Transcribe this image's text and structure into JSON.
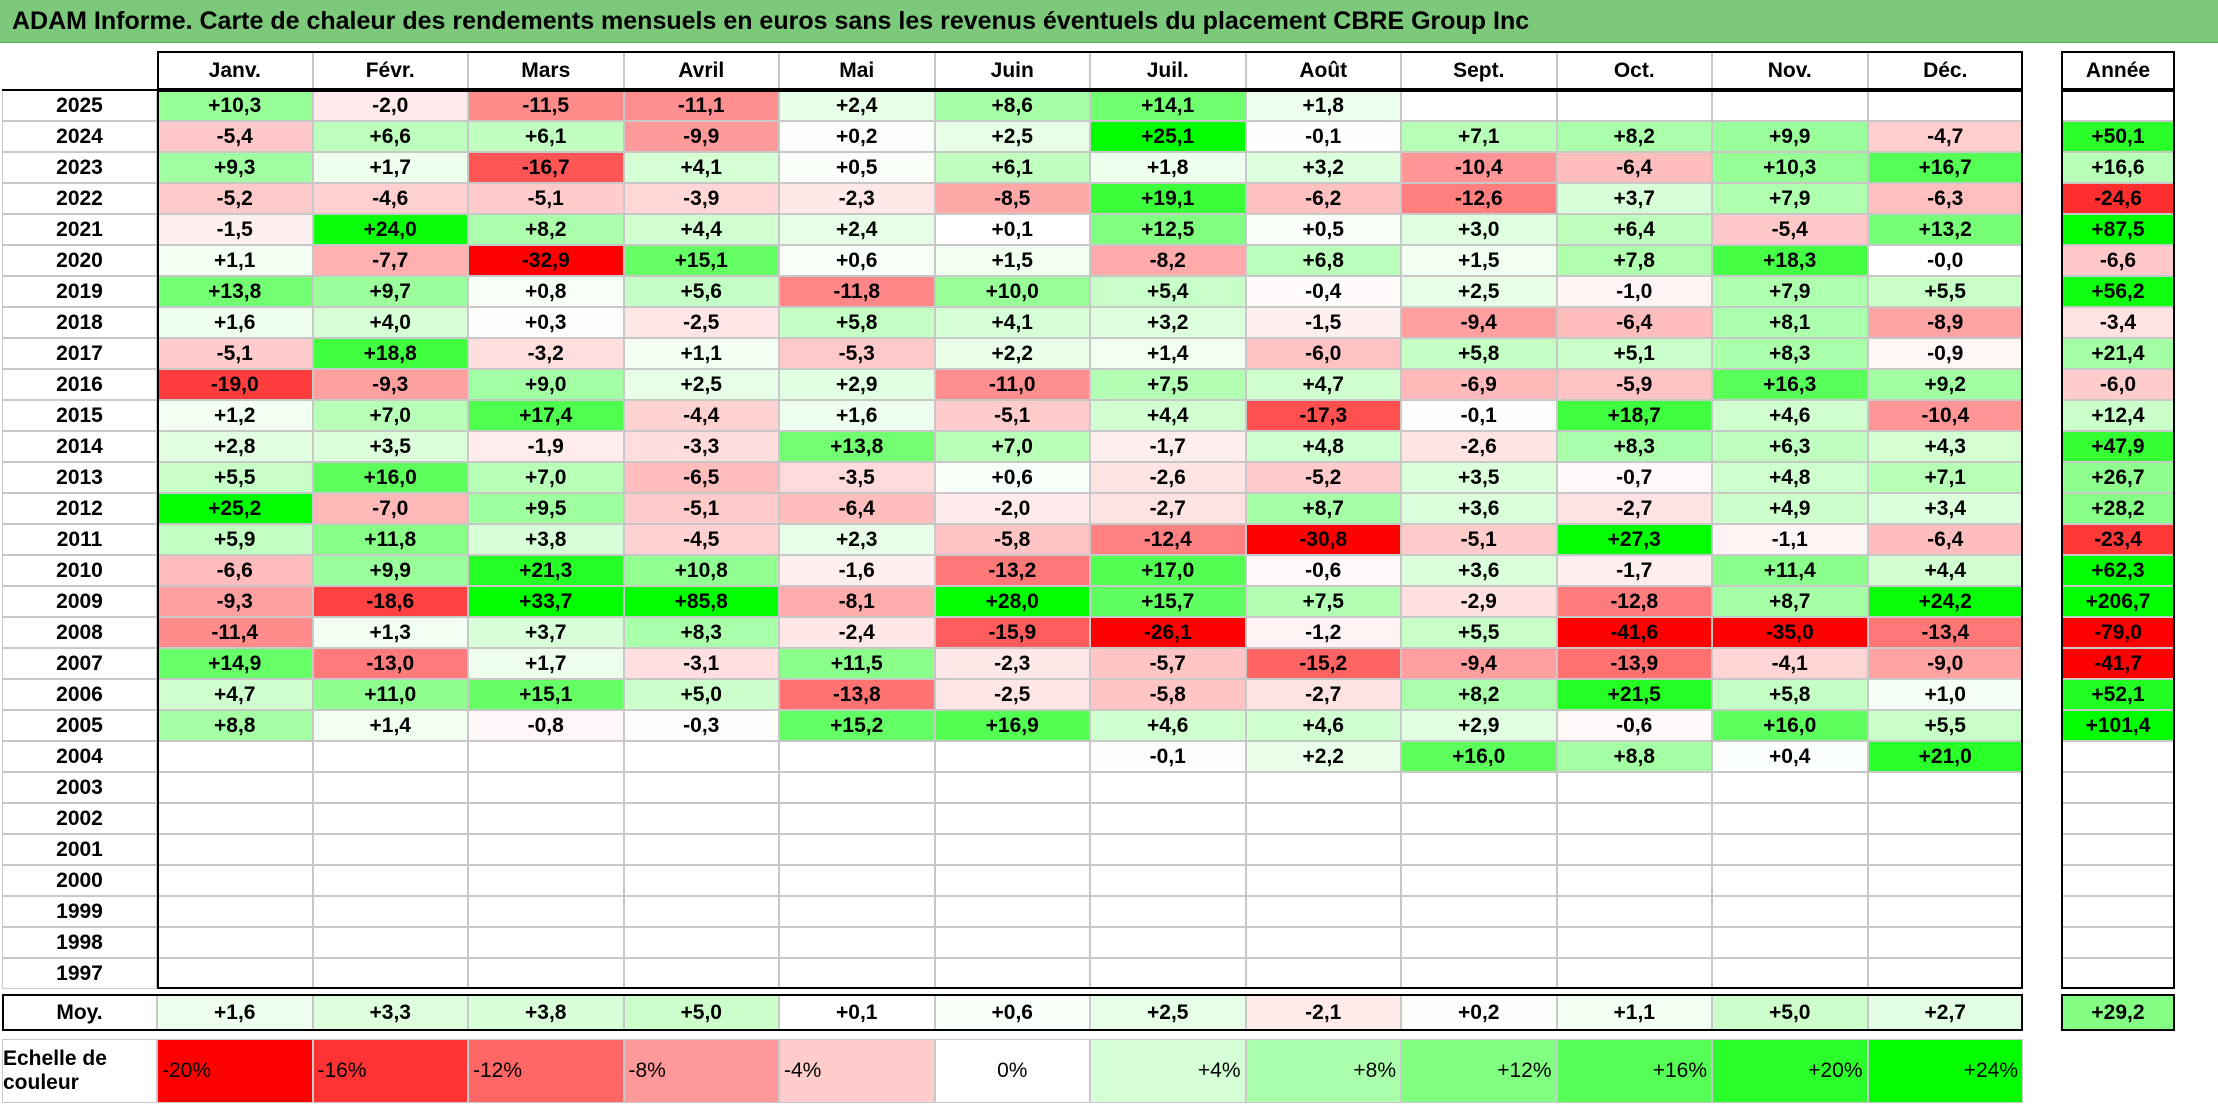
{
  "title": "ADAM Informe. Carte de chaleur des rendements mensuels en euros sans les revenus éventuels du placement CBRE Group Inc",
  "chart_data": {
    "type": "heatmap",
    "title": "ADAM Informe. Carte de chaleur des rendements mensuels en euros sans les revenus éventuels du placement CBRE Group Inc",
    "months": [
      "Janv.",
      "Févr.",
      "Mars",
      "Avril",
      "Mai",
      "Juin",
      "Juil.",
      "Août",
      "Sept.",
      "Oct.",
      "Nov.",
      "Déc."
    ],
    "year_label": "Année",
    "avg_label": "Moy.",
    "rows": [
      {
        "year": "2025",
        "values": [
          "+10,3",
          "-2,0",
          "-11,5",
          "-11,1",
          "+2,4",
          "+8,6",
          "+14,1",
          "+1,8",
          "",
          "",
          "",
          ""
        ],
        "annual": ""
      },
      {
        "year": "2024",
        "values": [
          "-5,4",
          "+6,6",
          "+6,1",
          "-9,9",
          "+0,2",
          "+2,5",
          "+25,1",
          "-0,1",
          "+7,1",
          "+8,2",
          "+9,9",
          "-4,7"
        ],
        "annual": "+50,1"
      },
      {
        "year": "2023",
        "values": [
          "+9,3",
          "+1,7",
          "-16,7",
          "+4,1",
          "+0,5",
          "+6,1",
          "+1,8",
          "+3,2",
          "-10,4",
          "-6,4",
          "+10,3",
          "+16,7"
        ],
        "annual": "+16,6"
      },
      {
        "year": "2022",
        "values": [
          "-5,2",
          "-4,6",
          "-5,1",
          "-3,9",
          "-2,3",
          "-8,5",
          "+19,1",
          "-6,2",
          "-12,6",
          "+3,7",
          "+7,9",
          "-6,3"
        ],
        "annual": "-24,6"
      },
      {
        "year": "2021",
        "values": [
          "-1,5",
          "+24,0",
          "+8,2",
          "+4,4",
          "+2,4",
          "+0,1",
          "+12,5",
          "+0,5",
          "+3,0",
          "+6,4",
          "-5,4",
          "+13,2"
        ],
        "annual": "+87,5"
      },
      {
        "year": "2020",
        "values": [
          "+1,1",
          "-7,7",
          "-32,9",
          "+15,1",
          "+0,6",
          "+1,5",
          "-8,2",
          "+6,8",
          "+1,5",
          "+7,8",
          "+18,3",
          "-0,0"
        ],
        "annual": "-6,6"
      },
      {
        "year": "2019",
        "values": [
          "+13,8",
          "+9,7",
          "+0,8",
          "+5,6",
          "-11,8",
          "+10,0",
          "+5,4",
          "-0,4",
          "+2,5",
          "-1,0",
          "+7,9",
          "+5,5"
        ],
        "annual": "+56,2"
      },
      {
        "year": "2018",
        "values": [
          "+1,6",
          "+4,0",
          "+0,3",
          "-2,5",
          "+5,8",
          "+4,1",
          "+3,2",
          "-1,5",
          "-9,4",
          "-6,4",
          "+8,1",
          "-8,9"
        ],
        "annual": "-3,4"
      },
      {
        "year": "2017",
        "values": [
          "-5,1",
          "+18,8",
          "-3,2",
          "+1,1",
          "-5,3",
          "+2,2",
          "+1,4",
          "-6,0",
          "+5,8",
          "+5,1",
          "+8,3",
          "-0,9"
        ],
        "annual": "+21,4"
      },
      {
        "year": "2016",
        "values": [
          "-19,0",
          "-9,3",
          "+9,0",
          "+2,5",
          "+2,9",
          "-11,0",
          "+7,5",
          "+4,7",
          "-6,9",
          "-5,9",
          "+16,3",
          "+9,2"
        ],
        "annual": "-6,0"
      },
      {
        "year": "2015",
        "values": [
          "+1,2",
          "+7,0",
          "+17,4",
          "-4,4",
          "+1,6",
          "-5,1",
          "+4,4",
          "-17,3",
          "-0,1",
          "+18,7",
          "+4,6",
          "-10,4"
        ],
        "annual": "+12,4"
      },
      {
        "year": "2014",
        "values": [
          "+2,8",
          "+3,5",
          "-1,9",
          "-3,3",
          "+13,8",
          "+7,0",
          "-1,7",
          "+4,8",
          "-2,6",
          "+8,3",
          "+6,3",
          "+4,3"
        ],
        "annual": "+47,9"
      },
      {
        "year": "2013",
        "values": [
          "+5,5",
          "+16,0",
          "+7,0",
          "-6,5",
          "-3,5",
          "+0,6",
          "-2,6",
          "-5,2",
          "+3,5",
          "-0,7",
          "+4,8",
          "+7,1"
        ],
        "annual": "+26,7"
      },
      {
        "year": "2012",
        "values": [
          "+25,2",
          "-7,0",
          "+9,5",
          "-5,1",
          "-6,4",
          "-2,0",
          "-2,7",
          "+8,7",
          "+3,6",
          "-2,7",
          "+4,9",
          "+3,4"
        ],
        "annual": "+28,2"
      },
      {
        "year": "2011",
        "values": [
          "+5,9",
          "+11,8",
          "+3,8",
          "-4,5",
          "+2,3",
          "-5,8",
          "-12,4",
          "-30,8",
          "-5,1",
          "+27,3",
          "-1,1",
          "-6,4"
        ],
        "annual": "-23,4"
      },
      {
        "year": "2010",
        "values": [
          "-6,6",
          "+9,9",
          "+21,3",
          "+10,8",
          "-1,6",
          "-13,2",
          "+17,0",
          "-0,6",
          "+3,6",
          "-1,7",
          "+11,4",
          "+4,4"
        ],
        "annual": "+62,3"
      },
      {
        "year": "2009",
        "values": [
          "-9,3",
          "-18,6",
          "+33,7",
          "+85,8",
          "-8,1",
          "+28,0",
          "+15,7",
          "+7,5",
          "-2,9",
          "-12,8",
          "+8,7",
          "+24,2"
        ],
        "annual": "+206,7"
      },
      {
        "year": "2008",
        "values": [
          "-11,4",
          "+1,3",
          "+3,7",
          "+8,3",
          "-2,4",
          "-15,9",
          "-26,1",
          "-1,2",
          "+5,5",
          "-41,6",
          "-35,0",
          "-13,4"
        ],
        "annual": "-79,0"
      },
      {
        "year": "2007",
        "values": [
          "+14,9",
          "-13,0",
          "+1,7",
          "-3,1",
          "+11,5",
          "-2,3",
          "-5,7",
          "-15,2",
          "-9,4",
          "-13,9",
          "-4,1",
          "-9,0"
        ],
        "annual": "-41,7"
      },
      {
        "year": "2006",
        "values": [
          "+4,7",
          "+11,0",
          "+15,1",
          "+5,0",
          "-13,8",
          "-2,5",
          "-5,8",
          "-2,7",
          "+8,2",
          "+21,5",
          "+5,8",
          "+1,0"
        ],
        "annual": "+52,1"
      },
      {
        "year": "2005",
        "values": [
          "+8,8",
          "+1,4",
          "-0,8",
          "-0,3",
          "+15,2",
          "+16,9",
          "+4,6",
          "+4,6",
          "+2,9",
          "-0,6",
          "+16,0",
          "+5,5"
        ],
        "annual": "+101,4"
      },
      {
        "year": "2004",
        "values": [
          "",
          "",
          "",
          "",
          "",
          "",
          "-0,1",
          "+2,2",
          "+16,0",
          "+8,8",
          "+0,4",
          "+21,0"
        ],
        "annual": ""
      },
      {
        "year": "2003",
        "values": [
          "",
          "",
          "",
          "",
          "",
          "",
          "",
          "",
          "",
          "",
          "",
          ""
        ],
        "annual": ""
      },
      {
        "year": "2002",
        "values": [
          "",
          "",
          "",
          "",
          "",
          "",
          "",
          "",
          "",
          "",
          "",
          ""
        ],
        "annual": ""
      },
      {
        "year": "2001",
        "values": [
          "",
          "",
          "",
          "",
          "",
          "",
          "",
          "",
          "",
          "",
          "",
          ""
        ],
        "annual": ""
      },
      {
        "year": "2000",
        "values": [
          "",
          "",
          "",
          "",
          "",
          "",
          "",
          "",
          "",
          "",
          "",
          ""
        ],
        "annual": ""
      },
      {
        "year": "1999",
        "values": [
          "",
          "",
          "",
          "",
          "",
          "",
          "",
          "",
          "",
          "",
          "",
          ""
        ],
        "annual": ""
      },
      {
        "year": "1998",
        "values": [
          "",
          "",
          "",
          "",
          "",
          "",
          "",
          "",
          "",
          "",
          "",
          ""
        ],
        "annual": ""
      },
      {
        "year": "1997",
        "values": [
          "",
          "",
          "",
          "",
          "",
          "",
          "",
          "",
          "",
          "",
          "",
          ""
        ],
        "annual": ""
      }
    ],
    "averages": [
      "+1,6",
      "+3,3",
      "+3,8",
      "+5,0",
      "+0,1",
      "+0,6",
      "+2,5",
      "-2,1",
      "+0,2",
      "+1,1",
      "+5,0",
      "+2,7"
    ],
    "average_annual": "+29,2",
    "scale_label": "Echelle de couleur",
    "scale": [
      "-20%",
      "-16%",
      "-12%",
      "-8%",
      "-4%",
      "0%",
      "+4%",
      "+8%",
      "+12%",
      "+16%",
      "+20%",
      "+24%"
    ],
    "color_min": "#ff0000",
    "color_mid": "#ffffff",
    "color_max": "#00ff00",
    "grid_color": "#c8c8c8"
  }
}
